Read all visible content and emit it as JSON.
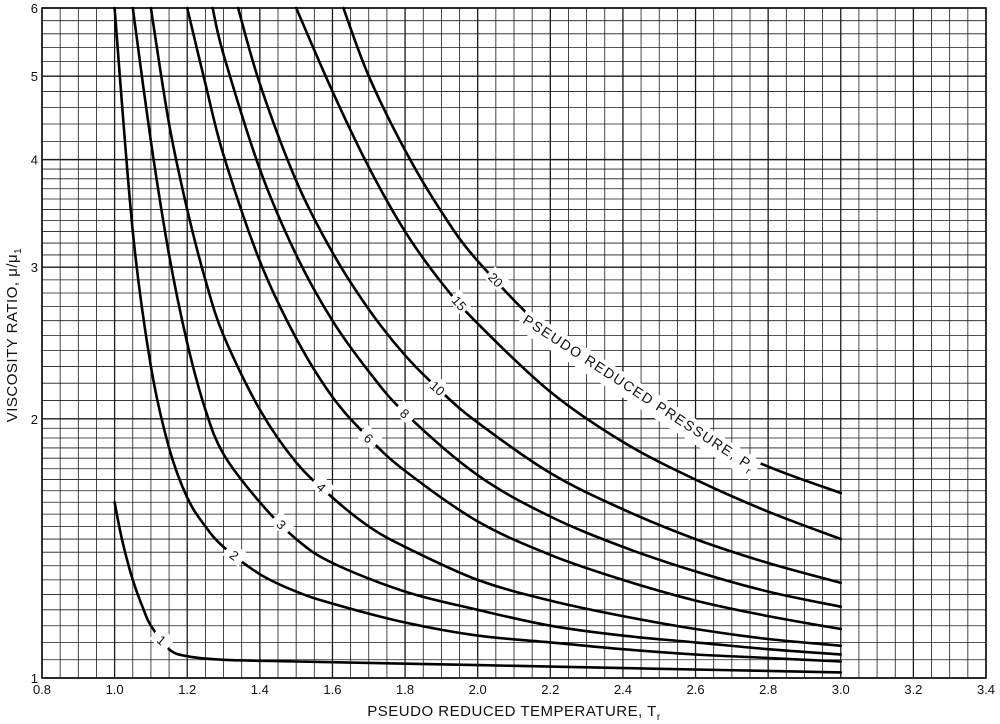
{
  "chart_data": {
    "type": "line",
    "title": "",
    "xlabel": "PSEUDO REDUCED TEMPERATURE, T",
    "xlabel_sub": "r",
    "ylabel": "VISCOSITY RATIO, μ/μ",
    "ylabel_sub": "1",
    "xlim": [
      0.8,
      3.4
    ],
    "ylim": [
      1,
      6
    ],
    "yscale": "log",
    "grid": true,
    "x_ticks": [
      "0.8",
      "1.0",
      "1.2",
      "1.4",
      "1.6",
      "1.8",
      "2.0",
      "2.2",
      "2.4",
      "2.6",
      "2.8",
      "3.0",
      "3.2",
      "3.4"
    ],
    "y_ticks": [
      "1",
      "2",
      "3",
      "4",
      "5",
      "6"
    ],
    "annotation": "PSEUDO REDUCED PRESSURE, P",
    "annotation_sub": "r",
    "series": [
      {
        "name": "1",
        "label_at": 1.13,
        "x": [
          1.0,
          1.02,
          1.05,
          1.08,
          1.1,
          1.15,
          1.2,
          1.3,
          1.5,
          2.0,
          2.5,
          3.0
        ],
        "y": [
          1.6,
          1.45,
          1.3,
          1.2,
          1.15,
          1.08,
          1.06,
          1.05,
          1.045,
          1.035,
          1.025,
          1.015
        ]
      },
      {
        "name": "2",
        "label_at": 1.33,
        "x": [
          1.0,
          1.05,
          1.1,
          1.15,
          1.2,
          1.25,
          1.3,
          1.4,
          1.5,
          1.6,
          1.8,
          2.0,
          2.2,
          2.4,
          2.6,
          2.8,
          3.0
        ],
        "y": [
          6.0,
          3.3,
          2.3,
          1.85,
          1.62,
          1.5,
          1.42,
          1.32,
          1.26,
          1.22,
          1.16,
          1.12,
          1.1,
          1.08,
          1.065,
          1.055,
          1.045
        ]
      },
      {
        "name": "3",
        "label_at": 1.46,
        "x": [
          1.05,
          1.1,
          1.15,
          1.2,
          1.25,
          1.3,
          1.4,
          1.5,
          1.6,
          1.8,
          2.0,
          2.2,
          2.4,
          2.6,
          2.8,
          3.0
        ],
        "y": [
          6.0,
          4.2,
          3.1,
          2.45,
          2.05,
          1.82,
          1.6,
          1.45,
          1.36,
          1.26,
          1.2,
          1.15,
          1.12,
          1.1,
          1.08,
          1.065
        ]
      },
      {
        "name": "4",
        "label_at": 1.57,
        "x": [
          1.1,
          1.15,
          1.2,
          1.25,
          1.3,
          1.4,
          1.5,
          1.6,
          1.7,
          1.8,
          2.0,
          2.2,
          2.4,
          2.6,
          2.8,
          3.0
        ],
        "y": [
          6.0,
          4.4,
          3.5,
          2.9,
          2.5,
          2.05,
          1.78,
          1.62,
          1.5,
          1.42,
          1.3,
          1.23,
          1.18,
          1.14,
          1.11,
          1.09
        ]
      },
      {
        "name": "6",
        "label_at": 1.7,
        "x": [
          1.2,
          1.25,
          1.3,
          1.4,
          1.5,
          1.6,
          1.7,
          1.8,
          2.0,
          2.2,
          2.4,
          2.6,
          2.8,
          3.0
        ],
        "y": [
          6.0,
          4.9,
          4.05,
          3.05,
          2.48,
          2.12,
          1.9,
          1.74,
          1.52,
          1.39,
          1.3,
          1.23,
          1.18,
          1.14
        ]
      },
      {
        "name": "8",
        "label_at": 1.8,
        "x": [
          1.27,
          1.3,
          1.4,
          1.5,
          1.6,
          1.7,
          1.8,
          2.0,
          2.2,
          2.4,
          2.6,
          2.8,
          3.0
        ],
        "y": [
          6.0,
          5.3,
          3.9,
          3.1,
          2.6,
          2.27,
          2.03,
          1.72,
          1.54,
          1.42,
          1.33,
          1.26,
          1.21
        ]
      },
      {
        "name": "10",
        "label_at": 1.89,
        "x": [
          1.34,
          1.4,
          1.5,
          1.6,
          1.7,
          1.8,
          1.9,
          2.0,
          2.2,
          2.4,
          2.6,
          2.8,
          3.0
        ],
        "y": [
          6.0,
          4.9,
          3.78,
          3.12,
          2.68,
          2.37,
          2.15,
          1.98,
          1.73,
          1.57,
          1.45,
          1.36,
          1.29
        ]
      },
      {
        "name": "15",
        "label_at": 1.95,
        "x": [
          1.5,
          1.6,
          1.7,
          1.8,
          1.9,
          2.0,
          2.2,
          2.4,
          2.6,
          2.8,
          3.0
        ],
        "y": [
          6.0,
          4.8,
          3.92,
          3.3,
          2.88,
          2.58,
          2.15,
          1.88,
          1.7,
          1.56,
          1.45
        ]
      },
      {
        "name": "20",
        "label_at": 2.05,
        "x": [
          1.63,
          1.7,
          1.8,
          1.9,
          2.0,
          2.2,
          2.4,
          2.6,
          2.8,
          3.0
        ],
        "y": [
          6.0,
          5.0,
          4.1,
          3.48,
          3.05,
          2.5,
          2.16,
          1.93,
          1.76,
          1.64
        ]
      }
    ]
  }
}
